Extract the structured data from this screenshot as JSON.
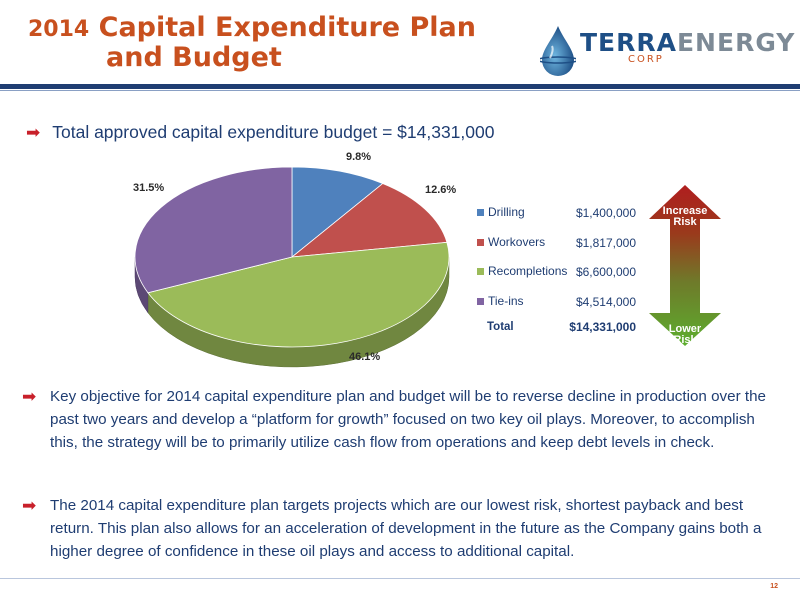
{
  "header": {
    "title_year": "2014",
    "title_line1": "Capital Expenditure Plan",
    "title_line2": "and Budget",
    "logo_main_a": "TERRA",
    "logo_main_b": "ENERGY",
    "logo_sub": "CORP"
  },
  "lead": {
    "text": "Total approved capital expenditure budget = $14,331,000"
  },
  "chart_data": {
    "type": "pie",
    "categories": [
      "Drilling",
      "Workovers",
      "Recompletions",
      "Tie-ins"
    ],
    "values": [
      9.8,
      12.6,
      46.1,
      31.5
    ],
    "value_labels": [
      "9.8%",
      "12.6%",
      "46.1%",
      "31.5%"
    ],
    "amounts": [
      "$1,400,000",
      "$1,817,000",
      "$6,600,000",
      "$4,514,000"
    ],
    "colors": [
      "#4f81bd",
      "#c0504d",
      "#9bbb59",
      "#8064a2"
    ],
    "total_label": "Total",
    "total_value": "$14,331,000",
    "legend": "right"
  },
  "risk": {
    "top_line1": "Increase",
    "top_line2": "Risk",
    "bottom_line1": "Lower",
    "bottom_line2": "Risk"
  },
  "bullets": [
    "Key objective for 2014 capital expenditure plan and budget will be to reverse decline in production over the past two years and develop a “platform for growth” focused on two key oil plays. Moreover, to accomplish this, the strategy will be to primarily utilize cash flow from operations and keep debt levels in check.",
    "The 2014 capital expenditure plan targets projects which are our lowest risk, shortest payback and best return. This plan also allows for an acceleration of development in the future as the Company gains both a higher degree of confidence in these oil plays and access to additional capital."
  ],
  "footer": {
    "page_number": "12"
  }
}
